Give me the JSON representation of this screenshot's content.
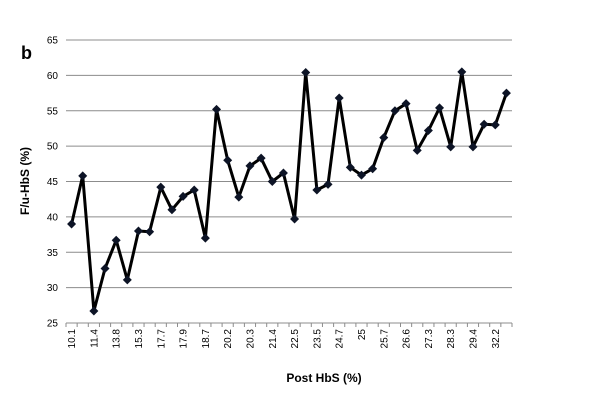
{
  "panel_label": "b",
  "chart_data": {
    "type": "line",
    "title": "",
    "xlabel": "Post HbS (%)",
    "ylabel": "F/u-HbS (%)",
    "ylim": [
      25,
      65
    ],
    "yticks": [
      25,
      30,
      35,
      40,
      45,
      50,
      55,
      60,
      65
    ],
    "grid": "horizontal",
    "legend": "none",
    "line_color": "#000000",
    "marker": "diamond",
    "x_tick_labels": [
      "10.1",
      "11.4",
      "13.8",
      "15.3",
      "17.7",
      "17.9",
      "18.7",
      "20.2",
      "20.3",
      "21.4",
      "22.5",
      "23.5",
      "24.7",
      "25",
      "25.7",
      "26.6",
      "27.3",
      "28.3",
      "29.4",
      "32.2"
    ],
    "values": [
      39.0,
      45.8,
      26.7,
      32.7,
      36.7,
      31.1,
      38.0,
      37.9,
      44.2,
      41.0,
      42.9,
      43.8,
      37.0,
      55.2,
      48.0,
      42.8,
      47.2,
      48.3,
      45.0,
      46.2,
      39.7,
      60.4,
      43.8,
      44.6,
      56.8,
      47.0,
      45.9,
      46.8,
      51.2,
      55.0,
      56.0,
      49.4,
      52.2,
      55.4,
      49.9,
      60.5,
      49.9,
      53.1,
      53.0,
      57.5
    ]
  }
}
